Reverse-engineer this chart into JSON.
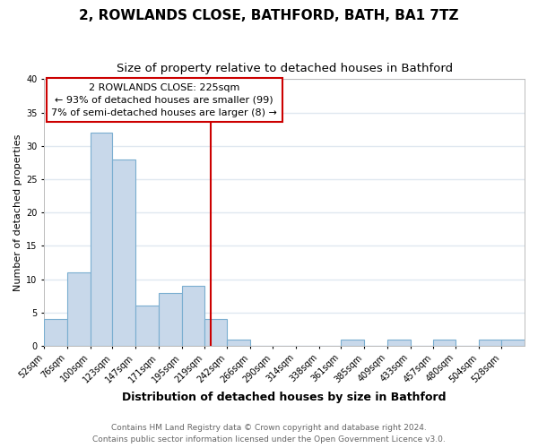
{
  "title": "2, ROWLANDS CLOSE, BATHFORD, BATH, BA1 7TZ",
  "subtitle": "Size of property relative to detached houses in Bathford",
  "xlabel": "Distribution of detached houses by size in Bathford",
  "ylabel": "Number of detached properties",
  "footer_line1": "Contains HM Land Registry data © Crown copyright and database right 2024.",
  "footer_line2": "Contains public sector information licensed under the Open Government Licence v3.0.",
  "bin_labels": [
    "52sqm",
    "76sqm",
    "100sqm",
    "123sqm",
    "147sqm",
    "171sqm",
    "195sqm",
    "219sqm",
    "242sqm",
    "266sqm",
    "290sqm",
    "314sqm",
    "338sqm",
    "361sqm",
    "385sqm",
    "409sqm",
    "433sqm",
    "457sqm",
    "480sqm",
    "504sqm",
    "528sqm"
  ],
  "bin_edges": [
    52,
    76,
    100,
    123,
    147,
    171,
    195,
    219,
    242,
    266,
    290,
    314,
    338,
    361,
    385,
    409,
    433,
    457,
    480,
    504,
    528,
    552
  ],
  "counts": [
    4,
    11,
    32,
    28,
    6,
    8,
    9,
    4,
    1,
    0,
    0,
    0,
    0,
    1,
    0,
    1,
    0,
    1,
    0,
    1,
    1
  ],
  "bar_color": "#c8d8ea",
  "bar_edge_color": "#7aaed0",
  "property_value": 225,
  "vline_color": "#cc0000",
  "annotation_line1": "2 ROWLANDS CLOSE: 225sqm",
  "annotation_line2": "← 93% of detached houses are smaller (99)",
  "annotation_line3": "7% of semi-detached houses are larger (8) →",
  "annotation_box_facecolor": "#ffffff",
  "annotation_box_edgecolor": "#cc0000",
  "ylim": [
    0,
    40
  ],
  "yticks": [
    0,
    5,
    10,
    15,
    20,
    25,
    30,
    35,
    40
  ],
  "background_color": "#ffffff",
  "plot_background_color": "#ffffff",
  "grid_color": "#e0e8f0",
  "title_fontsize": 11,
  "subtitle_fontsize": 9.5,
  "xlabel_fontsize": 9,
  "ylabel_fontsize": 8,
  "tick_fontsize": 7,
  "annotation_fontsize": 8,
  "footer_fontsize": 6.5
}
